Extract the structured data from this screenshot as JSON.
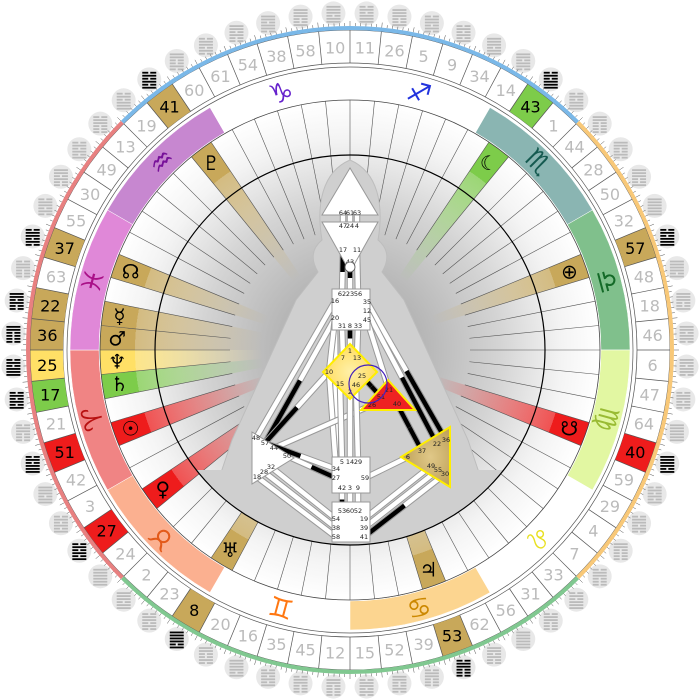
{
  "gate_wheel": {
    "order_clockwise_from_top": [
      11,
      26,
      5,
      9,
      34,
      14,
      43,
      1,
      44,
      28,
      50,
      32,
      57,
      48,
      18,
      46,
      6,
      47,
      64,
      40,
      59,
      29,
      4,
      7,
      33,
      31,
      56,
      62,
      53,
      39,
      52,
      15,
      12,
      45,
      35,
      16,
      20,
      8,
      23,
      2,
      24,
      27,
      3,
      42,
      51,
      21,
      17,
      25,
      36,
      22,
      63,
      37,
      55,
      30,
      49,
      13,
      19,
      41,
      60,
      61,
      54,
      38,
      58,
      10
    ],
    "number_color": "#bbbbbb",
    "highlighted": [
      {
        "gate": 41,
        "color": "#c8a85a"
      },
      {
        "gate": 43,
        "color": "#7dcc4a"
      },
      {
        "gate": 57,
        "color": "#c8a85a"
      },
      {
        "gate": 40,
        "color": "#ee1c1c"
      },
      {
        "gate": 53,
        "color": "#c8a85a"
      },
      {
        "gate": 8,
        "color": "#c8a85a"
      },
      {
        "gate": 27,
        "color": "#ee1c1c"
      },
      {
        "gate": 51,
        "color": "#ee1c1c"
      },
      {
        "gate": 17,
        "color": "#7dcc4a"
      },
      {
        "gate": 25,
        "color": "#ffe066"
      },
      {
        "gate": 36,
        "color": "#c8a85a"
      },
      {
        "gate": 22,
        "color": "#c8a85a"
      },
      {
        "gate": 37,
        "color": "#c8a85a"
      }
    ],
    "quarter_colors": [
      "#7ab8e8",
      "#f8c878",
      "#80c890",
      "#e88080"
    ]
  },
  "zodiac": [
    {
      "sign": "sagittarius",
      "glyph": "♐",
      "band": "#ffffff",
      "color": "#2233dd"
    },
    {
      "sign": "scorpio",
      "glyph": "♏",
      "band": "#8ab5b2",
      "color": "#155a50"
    },
    {
      "sign": "libra",
      "glyph": "♎",
      "band": "#80c08c",
      "color": "#146a28"
    },
    {
      "sign": "virgo",
      "glyph": "♍",
      "band": "#e2f7a2",
      "color": "#99bb33"
    },
    {
      "sign": "leo",
      "glyph": "♌",
      "band": "#ffffff",
      "color": "#e8e020"
    },
    {
      "sign": "cancer",
      "glyph": "♋",
      "band": "#fcd590",
      "color": "#cc8800"
    },
    {
      "sign": "gemini",
      "glyph": "♊",
      "band": "#ffffff",
      "color": "#ff7711"
    },
    {
      "sign": "taurus",
      "glyph": "♉",
      "band": "#fbb090",
      "color": "#e35a1a"
    },
    {
      "sign": "aries",
      "glyph": "♈",
      "band": "#f08484",
      "color": "#b81010"
    },
    {
      "sign": "pisces",
      "glyph": "♓",
      "band": "#e088d8",
      "color": "#aa1188"
    },
    {
      "sign": "aquarius",
      "glyph": "♒",
      "band": "#c787d0",
      "color": "#771199"
    },
    {
      "sign": "capricorn",
      "glyph": "♑",
      "band": "#ffffff",
      "color": "#6622cc"
    }
  ],
  "planets": [
    {
      "name": "moon",
      "glyph": "☾",
      "gate": 43,
      "color": "#7dcc4a"
    },
    {
      "name": "earth",
      "glyph": "⊕",
      "gate": 57,
      "color": "#c8a85a"
    },
    {
      "name": "south-node",
      "glyph": "☋",
      "gate": 40,
      "color": "#ee1c1c"
    },
    {
      "name": "jupiter",
      "glyph": "♃",
      "gate": 53,
      "color": "#c8a85a"
    },
    {
      "name": "uranus",
      "glyph": "♅",
      "gate": 8,
      "color": "#c8a85a"
    },
    {
      "name": "venus",
      "glyph": "♀",
      "gate": 27,
      "color": "#ee1c1c"
    },
    {
      "name": "sun",
      "glyph": "☉",
      "gate": 51,
      "color": "#ee1c1c"
    },
    {
      "name": "saturn",
      "glyph": "♄",
      "gate": 17,
      "color": "#7dcc4a"
    },
    {
      "name": "neptune",
      "glyph": "♆",
      "gate": 25,
      "color": "#ffe066"
    },
    {
      "name": "mars",
      "glyph": "♂",
      "gate": 36,
      "color": "#c8a85a"
    },
    {
      "name": "mercury",
      "glyph": "☿",
      "gate": 22,
      "color": "#c8a85a"
    },
    {
      "name": "north-node",
      "glyph": "☊",
      "gate": 37,
      "color": "#c8a85a"
    },
    {
      "name": "pluto",
      "glyph": "♇",
      "gate": 41,
      "color": "#c8a85a"
    }
  ],
  "bodygraph": {
    "centers": [
      {
        "name": "head",
        "gates": [
          64,
          61,
          63
        ],
        "color": "#ffffff",
        "defined": false
      },
      {
        "name": "ajna",
        "gates": [
          47,
          24,
          4,
          17,
          43,
          11
        ],
        "color": "#ffffff",
        "defined": false
      },
      {
        "name": "throat",
        "gates": [
          62,
          23,
          56,
          16,
          20,
          35,
          12,
          45,
          31,
          8,
          33
        ],
        "color": "#ffffff",
        "defined": false
      },
      {
        "name": "g-center",
        "gates": [
          1,
          7,
          13,
          10,
          15,
          46,
          25,
          2
        ],
        "color": "#ffe680",
        "defined": true
      },
      {
        "name": "heart",
        "gates": [
          21,
          51,
          26,
          40
        ],
        "color": "#ee2222",
        "defined": true
      },
      {
        "name": "spleen",
        "gates": [
          48,
          57,
          44,
          50,
          32,
          28,
          18
        ],
        "color": "#ffffff",
        "defined": false
      },
      {
        "name": "sacral",
        "gates": [
          5,
          14,
          29,
          34,
          27,
          59,
          42,
          3,
          9
        ],
        "color": "#ffffff",
        "defined": false
      },
      {
        "name": "root",
        "gates": [
          53,
          60,
          52,
          54,
          38,
          58,
          19,
          39,
          41
        ],
        "color": "#ffffff",
        "defined": false
      },
      {
        "name": "solar-plexus",
        "gates": [
          36,
          22,
          37,
          6,
          49,
          55,
          30
        ],
        "color": "#c8a85a",
        "defined": true
      }
    ],
    "channels": [
      [
        64,
        47
      ],
      [
        61,
        24
      ],
      [
        63,
        4
      ],
      [
        17,
        62
      ],
      [
        43,
        23
      ],
      [
        11,
        56
      ],
      [
        16,
        48
      ],
      [
        20,
        57
      ],
      [
        20,
        34
      ],
      [
        10,
        20
      ],
      [
        35,
        36
      ],
      [
        12,
        22
      ],
      [
        45,
        21
      ],
      [
        31,
        7
      ],
      [
        8,
        1
      ],
      [
        33,
        13
      ],
      [
        10,
        57
      ],
      [
        10,
        34
      ],
      [
        25,
        51
      ],
      [
        26,
        44
      ],
      [
        40,
        37
      ],
      [
        50,
        27
      ],
      [
        6,
        59
      ],
      [
        5,
        15
      ],
      [
        14,
        2
      ],
      [
        29,
        46
      ],
      [
        42,
        53
      ],
      [
        3,
        60
      ],
      [
        9,
        52
      ],
      [
        54,
        32
      ],
      [
        38,
        28
      ],
      [
        58,
        18
      ],
      [
        19,
        49
      ],
      [
        39,
        55
      ],
      [
        41,
        30
      ],
      [
        57,
        34
      ]
    ],
    "activated_gates": [
      41,
      43,
      57,
      40,
      53,
      8,
      27,
      51,
      17,
      25,
      36,
      22,
      37
    ],
    "circled_gate": 43,
    "highlight_ring_color": "#4422bb",
    "defined_border_color": "#ffee00"
  }
}
